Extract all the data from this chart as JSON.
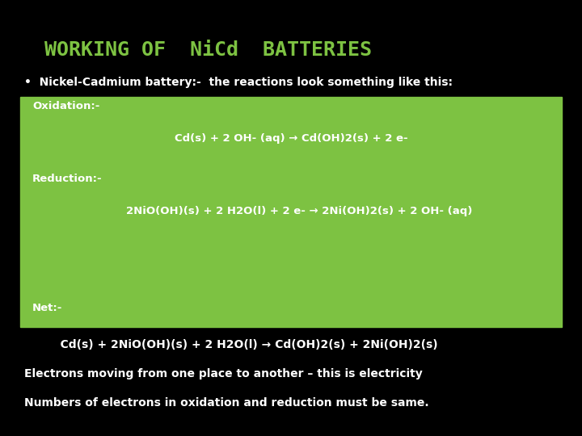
{
  "title": "WORKING OF  NiCd  BATTERIES",
  "title_color": "#7dc242",
  "bg_color": "#000000",
  "bullet_text": "•  Nickel-Cadmium battery:-  the reactions look something like this:",
  "bullet_color": "#ffffff",
  "box_color": "#7dc242",
  "oxidation_label": "Oxidation:-",
  "oxidation_eq": "Cd(s) + 2 OH- (aq) → Cd(OH)2(s) + 2 e-",
  "reduction_label": "Reduction:-",
  "reduction_eq": "2NiO(OH)(s) + 2 H2O(l) + 2 e- → 2Ni(OH)2(s) + 2 OH- (aq)",
  "net_label": "Net:-",
  "net_eq": "    Cd(s) + 2NiO(OH)(s) + 2 H2O(l) → Cd(OH)2(s) + 2Ni(OH)2(s)",
  "electrons_text": "Electrons moving from one place to another – this is electricity",
  "numbers_text": "Numbers of electrons in oxidation and reduction must be same.",
  "white": "#ffffff",
  "font_size_title": 18,
  "font_size_bullet": 10,
  "font_size_box": 9.5,
  "font_size_below": 10
}
